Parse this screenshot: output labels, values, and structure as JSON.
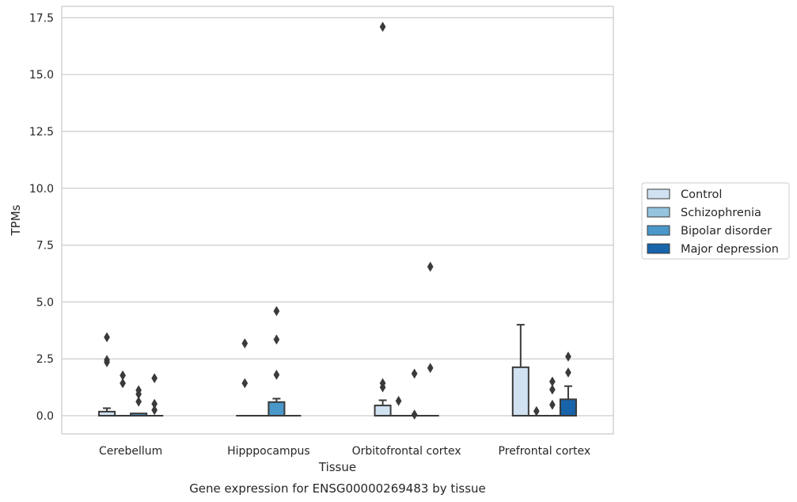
{
  "chart_data": {
    "type": "box",
    "title": "Gene expression for ENSG00000269483 by tissue",
    "xlabel": "Tissue",
    "ylabel": "TPMs",
    "ylim": [
      -0.8,
      18.0
    ],
    "yticks": [
      "0.0",
      "2.5",
      "5.0",
      "7.5",
      "10.0",
      "12.5",
      "15.0",
      "17.5"
    ],
    "categories": [
      "Cerebellum",
      "Hipppocampus",
      "Orbitofrontal cortex",
      "Prefrontal cortex"
    ],
    "grid": true,
    "legend_position": "right",
    "series": [
      {
        "name": "Control",
        "color": "#d0e1f2",
        "boxes": [
          {
            "q1": 0.0,
            "median": 0.0,
            "q3": 0.18,
            "whisker_low": 0.0,
            "whisker_high": 0.33,
            "outliers": [
              3.45,
              2.45,
              2.35
            ]
          },
          {
            "q1": 0.0,
            "median": 0.0,
            "q3": 0.0,
            "whisker_low": 0.0,
            "whisker_high": 0.0,
            "outliers": [
              3.18,
              1.43
            ]
          },
          {
            "q1": 0.0,
            "median": 0.0,
            "q3": 0.45,
            "whisker_low": 0.0,
            "whisker_high": 0.68,
            "outliers": [
              17.1,
              1.43,
              1.25
            ]
          },
          {
            "q1": 0.0,
            "median": 0.0,
            "q3": 2.13,
            "whisker_low": 0.0,
            "whisker_high": 4.0,
            "outliers": []
          }
        ]
      },
      {
        "name": "Schizophrenia",
        "color": "#94c4df",
        "boxes": [
          {
            "q1": 0.0,
            "median": 0.0,
            "q3": 0.0,
            "whisker_low": 0.0,
            "whisker_high": 0.0,
            "outliers": [
              1.77,
              1.43
            ]
          },
          {
            "q1": 0.0,
            "median": 0.0,
            "q3": 0.0,
            "whisker_low": 0.0,
            "whisker_high": 0.0,
            "outliers": []
          },
          {
            "q1": 0.0,
            "median": 0.0,
            "q3": 0.0,
            "whisker_low": 0.0,
            "whisker_high": 0.0,
            "outliers": [
              0.65
            ]
          },
          {
            "q1": 0.0,
            "median": 0.0,
            "q3": 0.0,
            "whisker_low": 0.0,
            "whisker_high": 0.0,
            "outliers": [
              0.2
            ]
          }
        ]
      },
      {
        "name": "Bipolar disorder",
        "color": "#4a98c9",
        "boxes": [
          {
            "q1": 0.0,
            "median": 0.0,
            "q3": 0.1,
            "whisker_low": 0.0,
            "whisker_high": 0.1,
            "outliers": [
              1.12,
              0.95,
              0.62
            ]
          },
          {
            "q1": 0.0,
            "median": 0.0,
            "q3": 0.6,
            "whisker_low": 0.0,
            "whisker_high": 0.75,
            "outliers": [
              4.6,
              3.35,
              1.8
            ]
          },
          {
            "q1": 0.0,
            "median": 0.0,
            "q3": 0.0,
            "whisker_low": 0.0,
            "whisker_high": 0.0,
            "outliers": [
              1.85,
              0.05
            ]
          },
          {
            "q1": 0.0,
            "median": 0.0,
            "q3": 0.0,
            "whisker_low": 0.0,
            "whisker_high": 0.0,
            "outliers": [
              1.5,
              1.15,
              0.48
            ]
          }
        ]
      },
      {
        "name": "Major depression",
        "color": "#1764ab",
        "boxes": [
          {
            "q1": 0.0,
            "median": 0.0,
            "q3": 0.0,
            "whisker_low": 0.0,
            "whisker_high": 0.0,
            "outliers": [
              1.65,
              0.52,
              0.25
            ]
          },
          {
            "q1": 0.0,
            "median": 0.0,
            "q3": 0.0,
            "whisker_low": 0.0,
            "whisker_high": 0.0,
            "outliers": []
          },
          {
            "q1": 0.0,
            "median": 0.0,
            "q3": 0.0,
            "whisker_low": 0.0,
            "whisker_high": 0.0,
            "outliers": [
              6.55,
              2.1
            ]
          },
          {
            "q1": 0.0,
            "median": 0.0,
            "q3": 0.72,
            "whisker_low": 0.0,
            "whisker_high": 1.3,
            "outliers": [
              2.6,
              1.9
            ]
          }
        ]
      }
    ]
  }
}
